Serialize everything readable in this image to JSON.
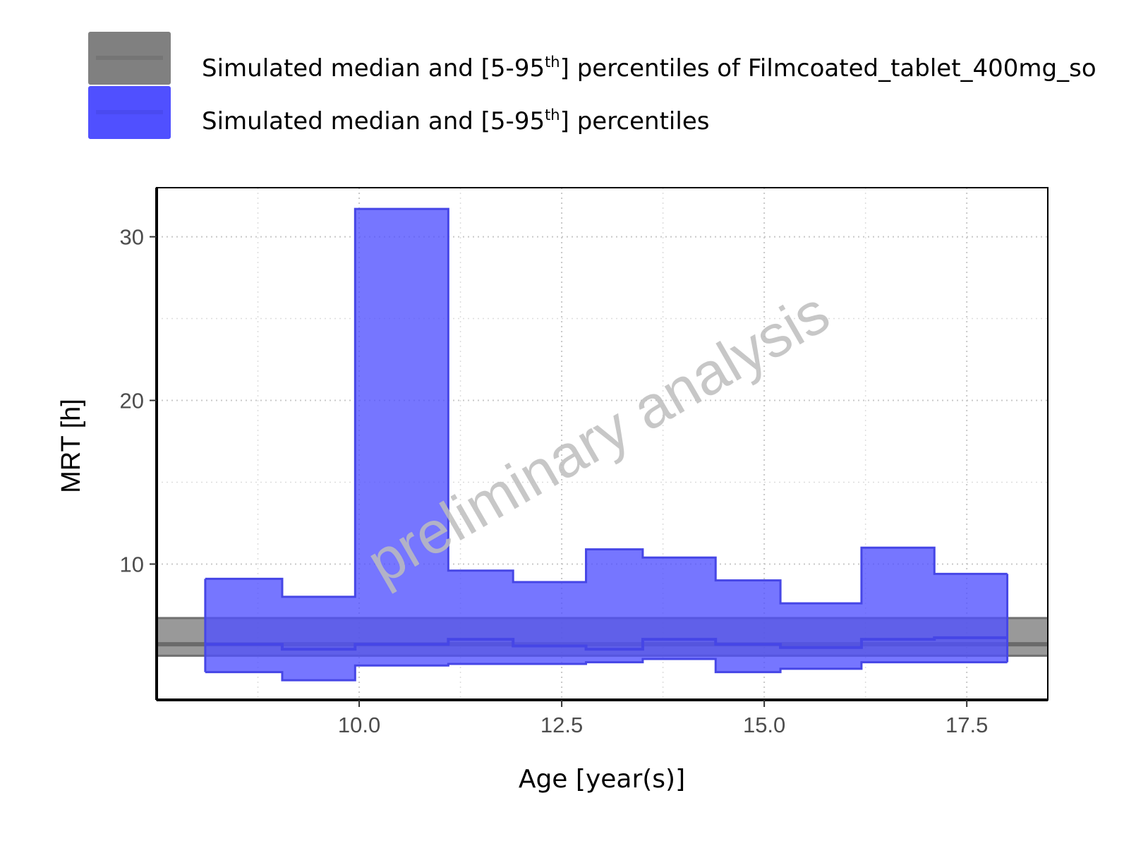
{
  "chart_data": {
    "type": "area",
    "xlabel": "Age [year(s)]",
    "ylabel": "MRT [h]",
    "xlim": [
      7.5,
      18.5
    ],
    "ylim": [
      1.7,
      33.0
    ],
    "x_ticks": [
      10.0,
      12.5,
      15.0,
      17.5
    ],
    "x_tick_labels": [
      "10.0",
      "12.5",
      "15.0",
      "17.5"
    ],
    "y_ticks": [
      10,
      20,
      30
    ],
    "y_tick_labels": [
      "10",
      "20",
      "30"
    ],
    "grid": "on (dotted major and minor)",
    "watermark": "preliminary analysis",
    "legend": {
      "position": "top",
      "entries": [
        {
          "text_before": "Simulated median and [5-95",
          "superscript": "th",
          "text_after": "] percentiles of Filmcoated_tablet_400mg_so",
          "fill_color": "#808080",
          "line_color": "#6e6e6e"
        },
        {
          "text_before": "Simulated median and [5-95",
          "superscript": "th",
          "text_after": "] percentiles",
          "fill_color": "#5050ff",
          "line_color": "#4646e6"
        }
      ]
    },
    "series": [
      {
        "name": "Simulated median and [5-95th] percentiles of Filmcoated_tablet_400mg_so",
        "kind": "horizontal-band",
        "color": "#808080",
        "x_range": [
          7.5,
          18.5
        ],
        "p5": 4.4,
        "median": 5.1,
        "p95": 6.7
      },
      {
        "name": "Simulated median and [5-95th] percentiles",
        "kind": "step-band",
        "color": "#5050ff",
        "bins": [
          {
            "x0": 8.1,
            "x1": 9.05,
            "p5": 3.4,
            "median": 5.1,
            "p95": 9.1
          },
          {
            "x0": 9.05,
            "x1": 9.95,
            "p5": 2.9,
            "median": 4.8,
            "p95": 8.0
          },
          {
            "x0": 9.95,
            "x1": 11.1,
            "p5": 3.8,
            "median": 5.1,
            "p95": 31.7
          },
          {
            "x0": 11.1,
            "x1": 11.9,
            "p5": 3.9,
            "median": 5.4,
            "p95": 9.6
          },
          {
            "x0": 11.9,
            "x1": 12.8,
            "p5": 3.9,
            "median": 5.0,
            "p95": 8.9
          },
          {
            "x0": 12.8,
            "x1": 13.5,
            "p5": 4.0,
            "median": 4.8,
            "p95": 10.9
          },
          {
            "x0": 13.5,
            "x1": 14.4,
            "p5": 4.2,
            "median": 5.4,
            "p95": 10.4
          },
          {
            "x0": 14.4,
            "x1": 15.2,
            "p5": 3.4,
            "median": 5.1,
            "p95": 9.0
          },
          {
            "x0": 15.2,
            "x1": 16.2,
            "p5": 3.6,
            "median": 4.9,
            "p95": 7.6
          },
          {
            "x0": 16.2,
            "x1": 17.1,
            "p5": 4.0,
            "median": 5.4,
            "p95": 11.0
          },
          {
            "x0": 17.1,
            "x1": 18.0,
            "p5": 4.0,
            "median": 5.5,
            "p95": 9.4
          }
        ]
      }
    ]
  }
}
